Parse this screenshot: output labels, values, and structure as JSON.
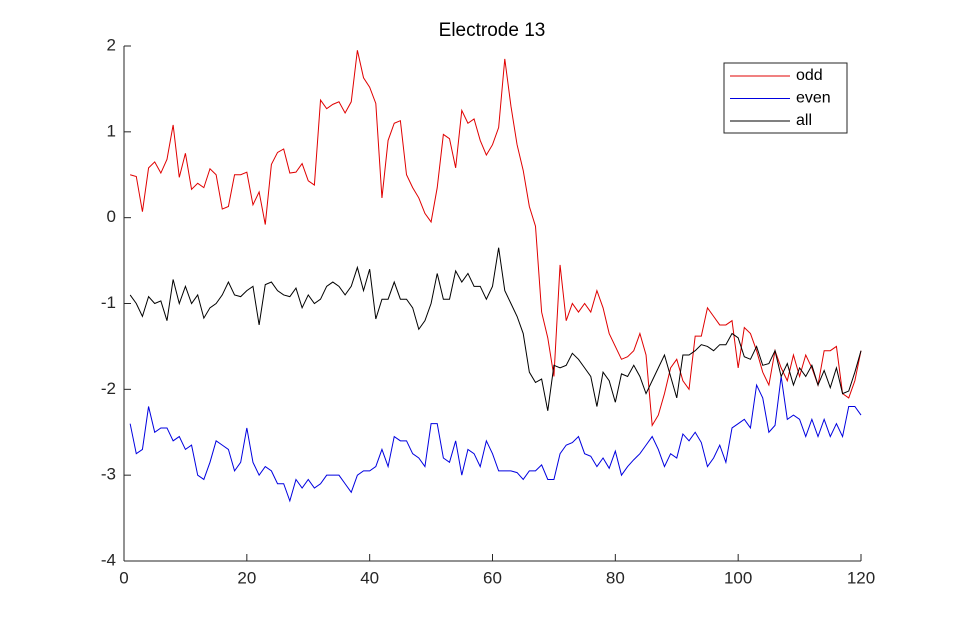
{
  "chart_data": {
    "type": "line",
    "title": "Electrode 13",
    "x": [
      1,
      2,
      3,
      4,
      5,
      6,
      7,
      8,
      9,
      10,
      11,
      12,
      13,
      14,
      15,
      16,
      17,
      18,
      19,
      20,
      21,
      22,
      23,
      24,
      25,
      26,
      27,
      28,
      29,
      30,
      31,
      32,
      33,
      34,
      35,
      36,
      37,
      38,
      39,
      40,
      41,
      42,
      43,
      44,
      45,
      46,
      47,
      48,
      49,
      50,
      51,
      52,
      53,
      54,
      55,
      56,
      57,
      58,
      59,
      60,
      61,
      62,
      63,
      64,
      65,
      66,
      67,
      68,
      69,
      70,
      71,
      72,
      73,
      74,
      75,
      76,
      77,
      78,
      79,
      80,
      81,
      82,
      83,
      84,
      85,
      86,
      87,
      88,
      89,
      90,
      91,
      92,
      93,
      94,
      95,
      96,
      97,
      98,
      99,
      100,
      101,
      102,
      103,
      104,
      105,
      106,
      107,
      108,
      109,
      110,
      111,
      112,
      113,
      114,
      115,
      116,
      117,
      118,
      119,
      120
    ],
    "series": [
      {
        "name": "odd",
        "color": "#e00000",
        "values": [
          0.5,
          0.48,
          0.07,
          0.58,
          0.65,
          0.52,
          0.68,
          1.08,
          0.47,
          0.75,
          0.33,
          0.4,
          0.35,
          0.57,
          0.5,
          0.1,
          0.13,
          0.5,
          0.5,
          0.53,
          0.15,
          0.3,
          -0.08,
          0.62,
          0.76,
          0.8,
          0.52,
          0.53,
          0.63,
          0.43,
          0.38,
          1.37,
          1.27,
          1.32,
          1.35,
          1.22,
          1.35,
          1.95,
          1.63,
          1.52,
          1.33,
          0.23,
          0.9,
          1.1,
          1.13,
          0.5,
          0.35,
          0.23,
          0.05,
          -0.05,
          0.35,
          0.97,
          0.92,
          0.58,
          1.25,
          1.1,
          1.15,
          0.9,
          0.73,
          0.85,
          1.05,
          1.85,
          1.3,
          0.85,
          0.55,
          0.13,
          -0.1,
          -1.1,
          -1.4,
          -1.85,
          -0.55,
          -1.2,
          -1.0,
          -1.1,
          -1.0,
          -1.1,
          -0.85,
          -1.05,
          -1.35,
          -1.5,
          -1.65,
          -1.62,
          -1.55,
          -1.35,
          -1.6,
          -2.42,
          -2.3,
          -2.05,
          -1.75,
          -1.65,
          -1.9,
          -2.0,
          -1.38,
          -1.38,
          -1.05,
          -1.15,
          -1.25,
          -1.25,
          -1.2,
          -1.75,
          -1.28,
          -1.35,
          -1.55,
          -1.8,
          -1.95,
          -1.55,
          -1.75,
          -1.9,
          -1.6,
          -1.85,
          -1.6,
          -1.75,
          -1.95,
          -1.55,
          -1.55,
          -1.5,
          -2.05,
          -2.1,
          -1.9,
          -1.55
        ]
      },
      {
        "name": "even",
        "color": "#0000e0",
        "values": [
          -2.4,
          -2.75,
          -2.7,
          -2.2,
          -2.5,
          -2.45,
          -2.45,
          -2.6,
          -2.55,
          -2.7,
          -2.65,
          -3.0,
          -3.05,
          -2.85,
          -2.6,
          -2.65,
          -2.7,
          -2.95,
          -2.85,
          -2.45,
          -2.85,
          -3.0,
          -2.9,
          -2.95,
          -3.1,
          -3.1,
          -3.3,
          -3.05,
          -3.15,
          -3.05,
          -3.15,
          -3.1,
          -3.0,
          -3.0,
          -3.0,
          -3.1,
          -3.2,
          -3.0,
          -2.95,
          -2.95,
          -2.9,
          -2.7,
          -2.9,
          -2.55,
          -2.6,
          -2.6,
          -2.75,
          -2.8,
          -2.9,
          -2.4,
          -2.4,
          -2.8,
          -2.85,
          -2.6,
          -3.0,
          -2.7,
          -2.75,
          -2.9,
          -2.6,
          -2.75,
          -2.95,
          -2.95,
          -2.95,
          -2.97,
          -3.05,
          -2.95,
          -2.95,
          -2.88,
          -3.05,
          -3.05,
          -2.75,
          -2.65,
          -2.62,
          -2.55,
          -2.75,
          -2.78,
          -2.9,
          -2.8,
          -2.92,
          -2.72,
          -3.0,
          -2.9,
          -2.82,
          -2.75,
          -2.65,
          -2.55,
          -2.7,
          -2.9,
          -2.75,
          -2.8,
          -2.52,
          -2.6,
          -2.5,
          -2.62,
          -2.9,
          -2.8,
          -2.65,
          -2.85,
          -2.45,
          -2.4,
          -2.35,
          -2.45,
          -1.95,
          -2.1,
          -2.5,
          -2.42,
          -1.85,
          -2.35,
          -2.3,
          -2.35,
          -2.55,
          -2.35,
          -2.55,
          -2.35,
          -2.55,
          -2.4,
          -2.55,
          -2.2,
          -2.2,
          -2.3
        ]
      },
      {
        "name": "all",
        "color": "#000000",
        "values": [
          -0.9,
          -1.0,
          -1.15,
          -0.92,
          -1.0,
          -0.97,
          -1.2,
          -0.72,
          -1.0,
          -0.8,
          -1.0,
          -0.9,
          -1.17,
          -1.05,
          -1.0,
          -0.9,
          -0.75,
          -0.9,
          -0.92,
          -0.85,
          -0.8,
          -1.25,
          -0.78,
          -0.75,
          -0.85,
          -0.9,
          -0.92,
          -0.82,
          -1.05,
          -0.9,
          -1.0,
          -0.95,
          -0.8,
          -0.75,
          -0.8,
          -0.9,
          -0.8,
          -0.58,
          -0.85,
          -0.6,
          -1.18,
          -0.95,
          -0.95,
          -0.75,
          -0.95,
          -0.95,
          -1.05,
          -1.3,
          -1.2,
          -1.0,
          -0.65,
          -0.95,
          -0.95,
          -0.62,
          -0.75,
          -0.65,
          -0.8,
          -0.8,
          -0.95,
          -0.8,
          -0.35,
          -0.85,
          -1.0,
          -1.15,
          -1.35,
          -1.8,
          -1.92,
          -1.88,
          -2.25,
          -1.72,
          -1.75,
          -1.72,
          -1.58,
          -1.65,
          -1.75,
          -1.85,
          -2.2,
          -1.8,
          -1.9,
          -2.15,
          -1.82,
          -1.85,
          -1.72,
          -1.85,
          -2.05,
          -1.9,
          -1.75,
          -1.6,
          -1.85,
          -2.1,
          -1.6,
          -1.6,
          -1.55,
          -1.48,
          -1.5,
          -1.55,
          -1.48,
          -1.48,
          -1.35,
          -1.4,
          -1.62,
          -1.65,
          -1.5,
          -1.72,
          -1.7,
          -1.55,
          -1.85,
          -1.7,
          -1.95,
          -1.75,
          -1.85,
          -1.72,
          -1.95,
          -1.78,
          -1.98,
          -1.75,
          -2.05,
          -2.02,
          -1.8,
          -1.55
        ]
      }
    ],
    "xlim": [
      0,
      120
    ],
    "xticks": [
      0,
      20,
      40,
      60,
      80,
      100,
      120
    ],
    "ylim": [
      -4,
      2
    ],
    "yticks": [
      -4,
      -3,
      -2,
      -1,
      0,
      1,
      2
    ],
    "legend": "northeast"
  }
}
